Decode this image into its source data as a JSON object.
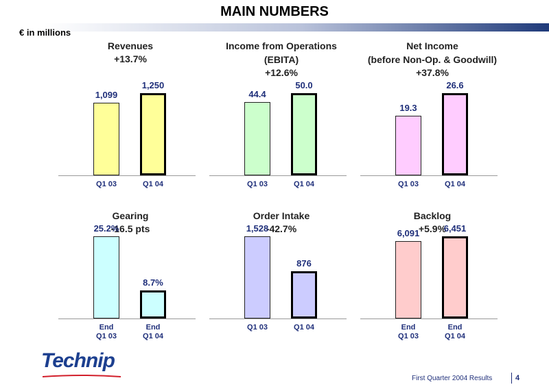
{
  "title": "MAIN NUMBERS",
  "units": "€  in millions",
  "footer": {
    "text": "First Quarter 2004 Results",
    "page": "4"
  },
  "logo": {
    "text": "Technip"
  },
  "colors": {
    "accent": "#1f2f7a"
  },
  "chart_data": [
    {
      "type": "bar",
      "title": "Revenues",
      "subtitle": "",
      "change": "+13.7%",
      "categories": [
        "Q1 03",
        "Q1 04"
      ],
      "values": [
        1099,
        1250
      ],
      "labels": [
        "1,099",
        "1,250"
      ],
      "colors": [
        "#ffff99",
        "#ffff99"
      ]
    },
    {
      "type": "bar",
      "title": "Income from Operations",
      "subtitle": "(EBITA)",
      "change": "+12.6%",
      "categories": [
        "Q1 03",
        "Q1 04"
      ],
      "values": [
        44.4,
        50.0
      ],
      "labels": [
        "44.4",
        "50.0"
      ],
      "colors": [
        "#ccffcc",
        "#ccffcc"
      ]
    },
    {
      "type": "bar",
      "title": "Net Income",
      "subtitle": "(before Non-Op. & Goodwill)",
      "change": "+37.8%",
      "categories": [
        "Q1 03",
        "Q1 04"
      ],
      "values": [
        19.3,
        26.6
      ],
      "labels": [
        "19.3",
        "26.6"
      ],
      "colors": [
        "#ffccff",
        "#ffccff"
      ]
    },
    {
      "type": "bar",
      "title": "Gearing",
      "subtitle": "",
      "change": "-16.5 pts",
      "categories": [
        "End\nQ1 03",
        "End\nQ1 04"
      ],
      "values": [
        25.2,
        8.7
      ],
      "labels": [
        "25.2%",
        "8.7%"
      ],
      "colors": [
        "#ccffff",
        "#ccffff"
      ]
    },
    {
      "type": "bar",
      "title": "Order Intake",
      "subtitle": "",
      "change": "-42.7%",
      "categories": [
        "Q1 03",
        "Q1 04"
      ],
      "values": [
        1528,
        876
      ],
      "labels": [
        "1,528",
        "876"
      ],
      "colors": [
        "#ccccff",
        "#ccccff"
      ]
    },
    {
      "type": "bar",
      "title": "Backlog",
      "subtitle": "",
      "change": "+5.9%",
      "categories": [
        "End\nQ1 03",
        "End\nQ1 04"
      ],
      "values": [
        6091,
        6451
      ],
      "labels": [
        "6,091",
        "6,451"
      ],
      "colors": [
        "#ffcccc",
        "#ffcccc"
      ]
    }
  ]
}
